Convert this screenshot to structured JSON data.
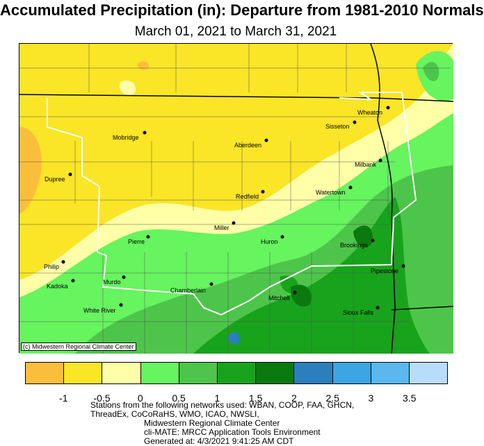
{
  "title": "Accumulated Precipitation (in): Departure from 1981-2010 Normals",
  "subtitle": "March 01, 2021 to March 31, 2021",
  "credit": "(c) Midwestern Regional Climate Center",
  "cities": [
    {
      "name": "Mobridge"
    },
    {
      "name": "Aberdeen"
    },
    {
      "name": "Sisseton"
    },
    {
      "name": "Wheaton"
    },
    {
      "name": "Milbank"
    },
    {
      "name": "Dupree"
    },
    {
      "name": "Redfield"
    },
    {
      "name": "Watertown"
    },
    {
      "name": "Miller"
    },
    {
      "name": "Pierre"
    },
    {
      "name": "Huron"
    },
    {
      "name": "Brookings"
    },
    {
      "name": "Philip"
    },
    {
      "name": "Pipestone"
    },
    {
      "name": "Murdo"
    },
    {
      "name": "Kadoka"
    },
    {
      "name": "Chamberlain"
    },
    {
      "name": "Mitchell"
    },
    {
      "name": "White River"
    },
    {
      "name": "Sioux Falls"
    }
  ],
  "legend": {
    "colors": [
      "#fbbe3a",
      "#fae527",
      "#ffffa8",
      "#66f45f",
      "#4dc54a",
      "#18a31c",
      "#0b7a0e",
      "#2b7fbd",
      "#3aa6e3",
      "#59b8ee",
      "#b8dcfb"
    ],
    "ticks": [
      "-1",
      "-0.5",
      "0",
      "0.5",
      "1",
      "1.5",
      "2",
      "2.5",
      "3",
      "3.5"
    ]
  },
  "footer": {
    "line1": "Stations from the following networks used: WBAN, COOP, FAA, GHCN,",
    "line2": "ThreadEx, CoCoRaHS, WMO, ICAO, NWSLI,",
    "line3": "Midwestern Regional Climate Center",
    "line4": "cli-MATE: MRCC Application Tools Environment",
    "line5": "Generated at: 4/3/2021 9:41:25 AM CDT"
  }
}
